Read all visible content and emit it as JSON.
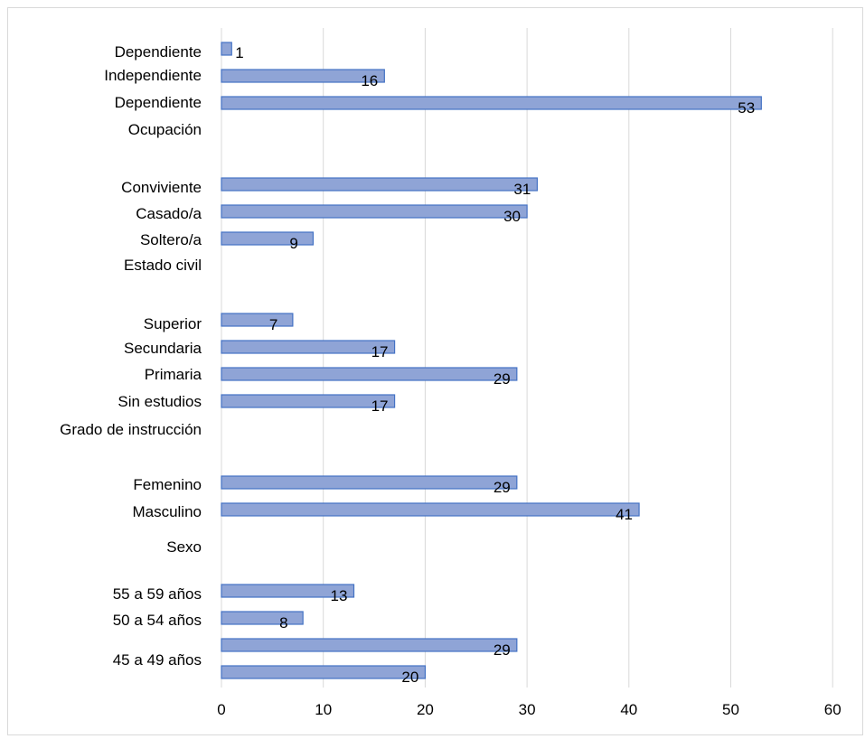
{
  "chart_data": {
    "type": "bar",
    "orientation": "horizontal",
    "title": "",
    "xlabel": "",
    "ylabel": "",
    "xlim": [
      0,
      60
    ],
    "x_ticks": [
      0,
      10,
      20,
      30,
      40,
      50,
      60
    ],
    "grid": "vertical",
    "legend": "none",
    "bar_color": "#8fa4d6",
    "bar_border_color": "#4472c4",
    "bars": [
      {
        "category": "Dependiente",
        "value": 1
      },
      {
        "category": "Independiente",
        "value": 16
      },
      {
        "category": "Dependiente",
        "value": 53
      },
      {
        "category": "Conviviente",
        "value": 31
      },
      {
        "category": "Casado/a",
        "value": 30
      },
      {
        "category": "Soltero/a",
        "value": 9
      },
      {
        "category": "Superior",
        "value": 7
      },
      {
        "category": "Secundaria",
        "value": 17
      },
      {
        "category": "Primaria",
        "value": 29
      },
      {
        "category": "Sin estudios",
        "value": 17
      },
      {
        "category": "Femenino",
        "value": 29
      },
      {
        "category": "Masculino",
        "value": 41
      },
      {
        "category": "55 a 59 años",
        "value": 13
      },
      {
        "category": "50 a 54 años",
        "value": 8
      },
      {
        "category": "",
        "value": 29
      },
      {
        "category": "45 a 49 años",
        "value": 20
      }
    ],
    "group_labels": [
      "Ocupación",
      "Estado civil",
      "Grado de instrucción",
      "Sexo"
    ]
  }
}
